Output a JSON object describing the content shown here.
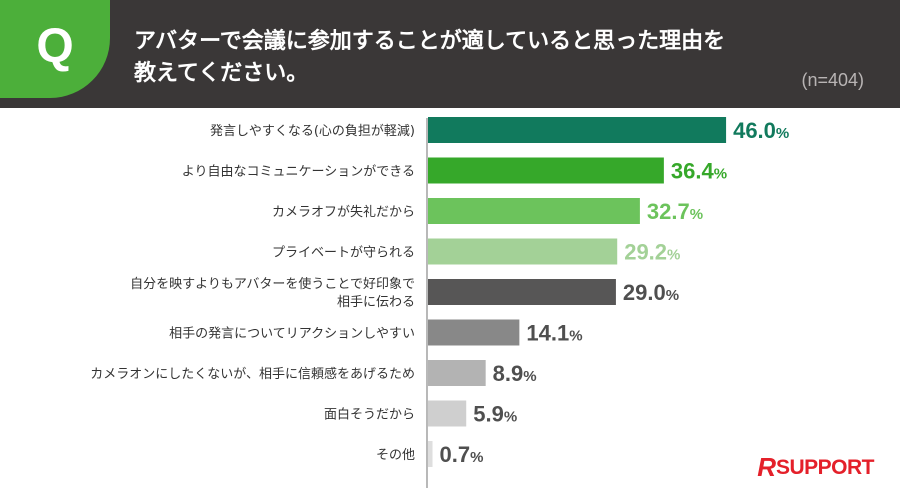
{
  "question": {
    "badge": "Q",
    "lines": [
      "アバターで会議に参加することが適していると思った理由を",
      "教えてください。"
    ],
    "sample": "(n=404)"
  },
  "brand": {
    "r": "R",
    "name": "SUPPORT",
    "color": "#e4202a"
  },
  "chart_data": {
    "type": "bar",
    "orientation": "horizontal",
    "unit": "%",
    "xlim": [
      0,
      50
    ],
    "categories": [
      [
        "発言しやすくなる(心の負担が軽減)"
      ],
      [
        "より自由なコミュニケーションができる"
      ],
      [
        "カメラオフが失礼だから"
      ],
      [
        "プライベートが守られる"
      ],
      [
        "自分を映すよりもアバターを使うことで好印象で",
        "相手に伝わる"
      ],
      [
        "相手の発言についてリアクションしやすい"
      ],
      [
        "カメラオンにしたくないが、相手に信頼感をあげるため"
      ],
      [
        "面白そうだから"
      ],
      [
        "その他"
      ]
    ],
    "values": [
      46.0,
      36.4,
      32.7,
      29.2,
      29.0,
      14.1,
      8.9,
      5.9,
      0.7
    ],
    "labels": [
      "46.0",
      "36.4",
      "32.7",
      "29.2",
      "29.0",
      "14.1",
      "8.9",
      "5.9",
      "0.7"
    ],
    "bar_colors": [
      "#117a5d",
      "#36a82a",
      "#6cc35c",
      "#a3d197",
      "#575656",
      "#888888",
      "#b3b3b3",
      "#cfcfcf",
      "#dedede"
    ],
    "label_colors": [
      "#117a5d",
      "#36a82a",
      "#6cc35c",
      "#a3d197",
      "#4f4f4f",
      "#4f4f4f",
      "#4f4f4f",
      "#4f4f4f",
      "#4f4f4f"
    ]
  }
}
